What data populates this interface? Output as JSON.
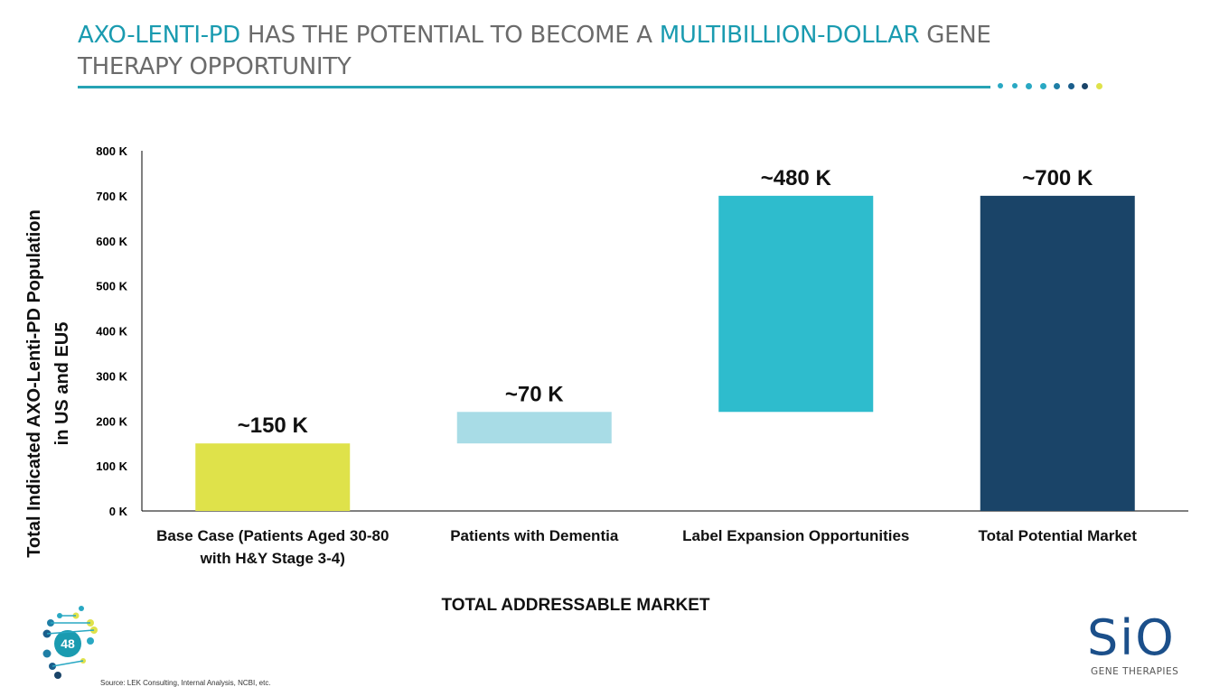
{
  "header": {
    "title_part1": "AXO-LENTI-PD",
    "title_part2": " HAS THE POTENTIAL TO BECOME A ",
    "title_part3": "MULTIBILLION-DOLLAR",
    "title_part4": " GENE THERAPY OPPORTUNITY"
  },
  "colors": {
    "accent": "#1a9bb0",
    "base_case": "#dfe24a",
    "dementia": "#a8dce6",
    "label_expansion": "#2ebccd",
    "total": "#1a4468",
    "dots": [
      "#29a8c3",
      "#29a8c3",
      "#29a8c3",
      "#29a8c3",
      "#1f7fa6",
      "#1a5e8c",
      "#1a4468",
      "#dfe24a"
    ]
  },
  "chart_data": {
    "type": "bar",
    "subtype": "waterfall",
    "categories": [
      [
        "Base Case (Patients Aged 30-80",
        "with H&Y Stage 3-4)"
      ],
      [
        "Patients with Dementia"
      ],
      [
        "Label Expansion Opportunities"
      ],
      [
        "Total Potential Market"
      ]
    ],
    "bars": [
      {
        "start": 0,
        "end": 150000,
        "label": "~150 K",
        "color": "#dfe24a"
      },
      {
        "start": 150000,
        "end": 220000,
        "label": "~70 K",
        "color": "#a8dce6"
      },
      {
        "start": 220000,
        "end": 700000,
        "label": "~480 K",
        "color": "#2ebccd"
      },
      {
        "start": 0,
        "end": 700000,
        "label": "~700 K",
        "color": "#1a4468"
      }
    ],
    "yticks": [
      "0 K",
      "100 K",
      "200 K",
      "300 K",
      "400 K",
      "500 K",
      "600 K",
      "700 K",
      "800 K"
    ],
    "ylim": [
      0,
      800000
    ],
    "xlabel": "TOTAL ADDRESSABLE MARKET",
    "ylabel": [
      "Total Indicated AXO-Lenti-PD Population",
      "in US and EU5"
    ],
    "grid": false,
    "legend": "none"
  },
  "footer": {
    "source": "Source: LEK Consulting, Internal Analysis, NCBI, etc.",
    "page_number": "48",
    "logo_text": "SiO",
    "logo_sub": "GENE THERAPIES"
  }
}
